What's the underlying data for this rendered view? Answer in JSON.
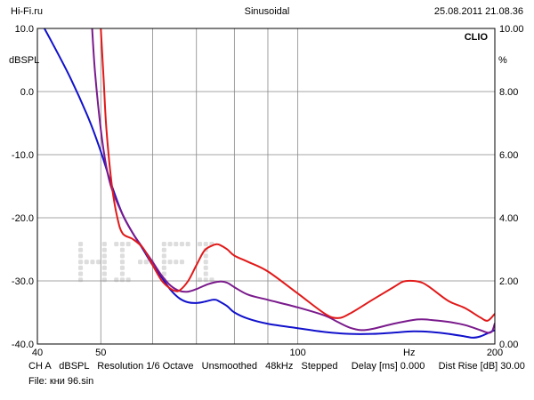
{
  "header": {
    "left": "Hi-Fi.ru",
    "center": "Sinusoidal",
    "right": "25.08.2011 21.08.36"
  },
  "footer": {
    "info": "CH A   dBSPL   Resolution 1/6 Octave   Unsmoothed   48kHz   Stepped     Delay [ms] 0.000     Dist Rise [dB] 30.00",
    "file": "File: кни 96.sin"
  },
  "chart_data": {
    "type": "line",
    "title": "Sinusoidal",
    "brand": "CLIO",
    "watermark": "HI-FI",
    "xlabel": "Hz",
    "ylabel_left": "dBSPL",
    "ylabel_right": "%",
    "x_scale": "log",
    "xlim": [
      40,
      200
    ],
    "ylim": [
      -40,
      10
    ],
    "ylim_right": [
      0,
      10
    ],
    "x_ticks": [
      40,
      50,
      100,
      200
    ],
    "x_grid": [
      40,
      50,
      60,
      70,
      80,
      90,
      100,
      200
    ],
    "y_ticks": [
      "10.0",
      "0.0",
      "-10.0",
      "-20.0",
      "-30.0",
      "-40.0"
    ],
    "y_ticks_right": [
      "10.00",
      "8.00",
      "6.00",
      "4.00",
      "2.00",
      "0.00"
    ],
    "grid": true,
    "colors": {
      "background": "#ffffff",
      "grid": "#888888",
      "watermark": "#dddddd"
    },
    "series": [
      {
        "color": "#1111cc",
        "points": [
          [
            40,
            12
          ],
          [
            42,
            8
          ],
          [
            45,
            2
          ],
          [
            48,
            -4.5
          ],
          [
            50,
            -9.5
          ],
          [
            52,
            -15
          ],
          [
            54,
            -19.5
          ],
          [
            56,
            -22.5
          ],
          [
            58,
            -25
          ],
          [
            60,
            -27.5
          ],
          [
            62,
            -29.5
          ],
          [
            64,
            -31.5
          ],
          [
            66,
            -32.8
          ],
          [
            68,
            -33.4
          ],
          [
            70,
            -33.5
          ],
          [
            72,
            -33.3
          ],
          [
            74,
            -33
          ],
          [
            75,
            -33
          ],
          [
            76,
            -33.3
          ],
          [
            78,
            -34
          ],
          [
            80,
            -35
          ],
          [
            84,
            -36
          ],
          [
            90,
            -36.8
          ],
          [
            100,
            -37.5
          ],
          [
            110,
            -38.1
          ],
          [
            120,
            -38.4
          ],
          [
            130,
            -38.4
          ],
          [
            140,
            -38.2
          ],
          [
            150,
            -38
          ],
          [
            160,
            -38.1
          ],
          [
            170,
            -38.4
          ],
          [
            180,
            -38.8
          ],
          [
            185,
            -39
          ],
          [
            190,
            -38.8
          ],
          [
            195,
            -38.3
          ],
          [
            200,
            -37.8
          ]
        ]
      },
      {
        "color": "#7a1a8c",
        "points": [
          [
            48.5,
            10
          ],
          [
            49,
            3
          ],
          [
            50,
            -6
          ],
          [
            51,
            -12
          ],
          [
            52,
            -15.5
          ],
          [
            54,
            -19.5
          ],
          [
            56,
            -22.5
          ],
          [
            58,
            -24.8
          ],
          [
            60,
            -27
          ],
          [
            62,
            -29.2
          ],
          [
            64,
            -30.8
          ],
          [
            66,
            -31.6
          ],
          [
            68,
            -31.7
          ],
          [
            70,
            -31.3
          ],
          [
            73,
            -30.5
          ],
          [
            76,
            -30.1
          ],
          [
            78,
            -30.3
          ],
          [
            80,
            -31
          ],
          [
            84,
            -32.2
          ],
          [
            90,
            -33
          ],
          [
            100,
            -34.2
          ],
          [
            110,
            -35.5
          ],
          [
            115,
            -36.5
          ],
          [
            120,
            -37.4
          ],
          [
            125,
            -37.8
          ],
          [
            130,
            -37.6
          ],
          [
            140,
            -36.8
          ],
          [
            150,
            -36.2
          ],
          [
            155,
            -36.1
          ],
          [
            160,
            -36.2
          ],
          [
            170,
            -36.5
          ],
          [
            180,
            -37
          ],
          [
            190,
            -37.8
          ],
          [
            195,
            -38.2
          ],
          [
            198,
            -38
          ],
          [
            200,
            -36.7
          ]
        ]
      },
      {
        "color": "#e11919",
        "points": [
          [
            50,
            10
          ],
          [
            50.5,
            2
          ],
          [
            51,
            -6
          ],
          [
            52,
            -15
          ],
          [
            53,
            -20
          ],
          [
            54,
            -22.5
          ],
          [
            56,
            -23.4
          ],
          [
            58,
            -24.8
          ],
          [
            60,
            -27.5
          ],
          [
            62,
            -30
          ],
          [
            64,
            -31.3
          ],
          [
            65,
            -31.6
          ],
          [
            66,
            -31.5
          ],
          [
            68,
            -30
          ],
          [
            70,
            -27.5
          ],
          [
            72,
            -25.2
          ],
          [
            74,
            -24.4
          ],
          [
            75,
            -24.2
          ],
          [
            76,
            -24.3
          ],
          [
            78,
            -25
          ],
          [
            80,
            -26
          ],
          [
            84,
            -27
          ],
          [
            90,
            -28.5
          ],
          [
            100,
            -32
          ],
          [
            110,
            -35.2
          ],
          [
            115,
            -35.9
          ],
          [
            120,
            -35.2
          ],
          [
            130,
            -33
          ],
          [
            140,
            -31
          ],
          [
            145,
            -30.1
          ],
          [
            150,
            -30
          ],
          [
            155,
            -30.3
          ],
          [
            160,
            -31.2
          ],
          [
            170,
            -33.2
          ],
          [
            180,
            -34.3
          ],
          [
            190,
            -35.8
          ],
          [
            195,
            -36.3
          ],
          [
            200,
            -35.2
          ]
        ]
      }
    ]
  }
}
